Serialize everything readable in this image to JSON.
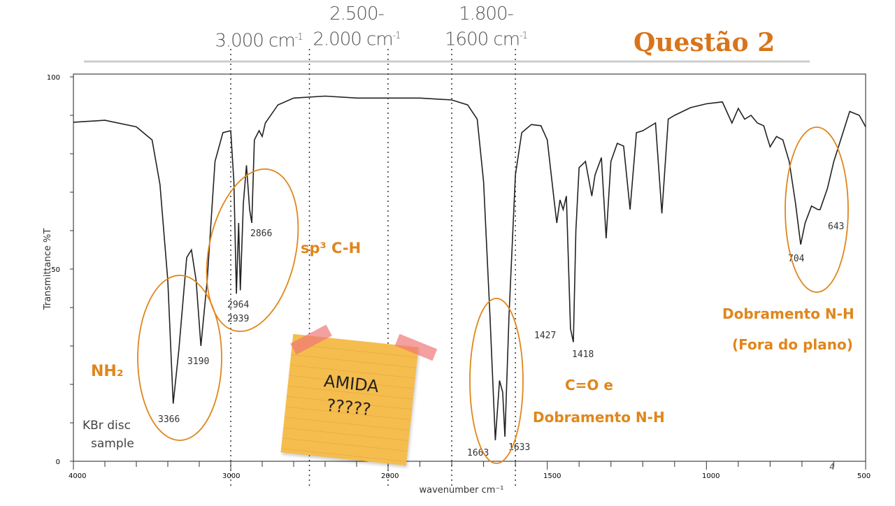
{
  "title": "Questão 2",
  "page_number": "4",
  "range_labels": [
    {
      "line1": "",
      "line2": "3.000 cm",
      "sup": "-1"
    },
    {
      "line1": "2.500-",
      "line2": "2.000 cm",
      "sup": "-1"
    },
    {
      "line1": "1.800-",
      "line2": "1600 cm",
      "sup": "-1"
    }
  ],
  "sticky_note": {
    "line1": "AMIDA",
    "line2": "?????",
    "color": "#f5bd4e"
  },
  "annotations": {
    "nh2": "NH₂",
    "sp3": "sp³ C-H",
    "co_line1": "C=O e",
    "co_line2": "Dobramento N-H",
    "oop_line1": "Dobramento N-H",
    "oop_line2": "(Fora do plano)",
    "color": "#e0861c"
  },
  "sample_note": {
    "line1": "KBr disc",
    "line2": "sample"
  },
  "chart_data": {
    "type": "line",
    "xlabel": "wavenumber cm⁻¹",
    "ylabel": "Transmittance %T",
    "xlim": [
      4000,
      500
    ],
    "ylim": [
      0,
      100
    ],
    "x_scale_note": "scale changes at 2000",
    "x_ticks": [
      "4000",
      "3000",
      "2000",
      "1500",
      "1000",
      "500"
    ],
    "y_ticks": [
      "0",
      "50",
      "100"
    ],
    "grid": false,
    "reference_lines": [
      3000,
      2500,
      2000,
      1800,
      1600
    ],
    "peak_labels": [
      "3366",
      "3190",
      "2964",
      "2939",
      "2866",
      "1663",
      "1633",
      "1427",
      "1418",
      "704",
      "643"
    ],
    "series": [
      {
        "x": [
          4000,
          3800,
          3600,
          3500,
          3450,
          3400,
          3366,
          3330,
          3280,
          3250,
          3220,
          3190,
          3150,
          3100,
          3050,
          3000,
          2980,
          2964,
          2950,
          2939,
          2920,
          2900,
          2880,
          2866,
          2850,
          2820,
          2800,
          2780,
          2700,
          2600,
          2400,
          2200,
          2000,
          1900,
          1800,
          1750,
          1720,
          1700,
          1680,
          1663,
          1650,
          1640,
          1633,
          1620,
          1600,
          1580,
          1550,
          1520,
          1500,
          1480,
          1470,
          1460,
          1450,
          1440,
          1427,
          1418,
          1410,
          1400,
          1380,
          1360,
          1350,
          1330,
          1315,
          1300,
          1280,
          1260,
          1240,
          1220,
          1200,
          1180,
          1160,
          1140,
          1120,
          1100,
          1050,
          1000,
          950,
          920,
          900,
          880,
          860,
          840,
          820,
          810,
          800,
          780,
          760,
          740,
          720,
          704,
          690,
          670,
          650,
          643,
          620,
          600,
          550,
          520,
          500
        ],
        "y": [
          88.2,
          88.7,
          87,
          83.6,
          72,
          47,
          15,
          29,
          53,
          55,
          47,
          30,
          47,
          78,
          85.5,
          86,
          72.7,
          43.6,
          62,
          44.5,
          67,
          77,
          65.5,
          62,
          83.6,
          86,
          84.5,
          88,
          92.7,
          94.5,
          95,
          94.5,
          94.5,
          94.5,
          94,
          92.7,
          89,
          72.7,
          38,
          5.5,
          21,
          18,
          6.4,
          38,
          74.5,
          85.5,
          87.6,
          87.3,
          83.6,
          69,
          62,
          68,
          65.5,
          69,
          34.5,
          31,
          60,
          76.4,
          78,
          69,
          74.5,
          79,
          58,
          78,
          82.7,
          82,
          65.5,
          85.5,
          86,
          87,
          88,
          64.5,
          89,
          90,
          92,
          93,
          93.5,
          88,
          91.8,
          89,
          90,
          88,
          87.3,
          84.5,
          81.8,
          84.5,
          83.6,
          78,
          67,
          56.4,
          62,
          66.4,
          65.5,
          65.5,
          71,
          78,
          91,
          90,
          87
        ]
      }
    ]
  }
}
